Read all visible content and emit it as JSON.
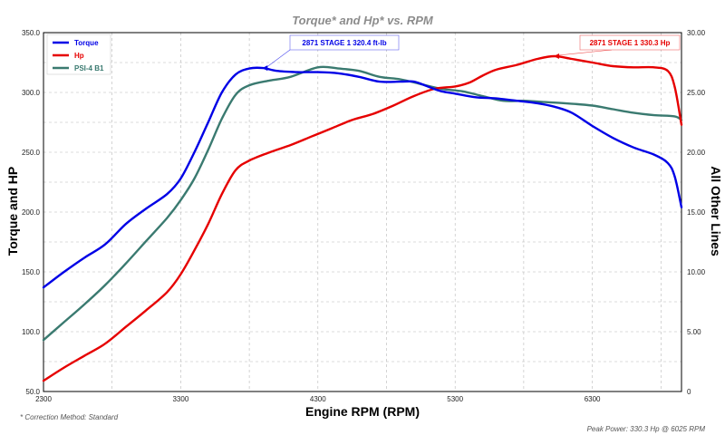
{
  "chart_data": {
    "type": "line",
    "title": "Torque* and Hp* vs. RPM",
    "xlabel": "Engine RPM (RPM)",
    "ylabel": "Torque and HP",
    "y2label": "All Other Lines",
    "xlim": [
      2300,
      6950
    ],
    "ylim": [
      50,
      350
    ],
    "y2lim": [
      0,
      30
    ],
    "xticks": [
      "2300",
      "3300",
      "4300",
      "5300",
      "6300"
    ],
    "yticks": [
      "50.0",
      "100.0",
      "150.0",
      "200.0",
      "250.0",
      "300.0",
      "350.0"
    ],
    "y2ticks": [
      "0",
      "5.00",
      "10.00",
      "15.00",
      "20.00",
      "25.00",
      "30.00"
    ],
    "grid": true,
    "legend_position": "top-left",
    "series": [
      {
        "name": "Torque",
        "color": "#0000e6",
        "axis": "left",
        "points": [
          [
            2300,
            137
          ],
          [
            2450,
            150
          ],
          [
            2600,
            162
          ],
          [
            2750,
            173
          ],
          [
            2900,
            190
          ],
          [
            3050,
            203
          ],
          [
            3200,
            215
          ],
          [
            3300,
            228
          ],
          [
            3400,
            250
          ],
          [
            3500,
            275
          ],
          [
            3600,
            300
          ],
          [
            3700,
            315
          ],
          [
            3800,
            320
          ],
          [
            3900,
            320.4
          ],
          [
            4000,
            318
          ],
          [
            4150,
            317
          ],
          [
            4300,
            317
          ],
          [
            4450,
            316
          ],
          [
            4600,
            313
          ],
          [
            4750,
            309
          ],
          [
            4900,
            309
          ],
          [
            5000,
            309
          ],
          [
            5100,
            305
          ],
          [
            5200,
            301
          ],
          [
            5300,
            299
          ],
          [
            5450,
            296
          ],
          [
            5600,
            295
          ],
          [
            5750,
            293
          ],
          [
            5900,
            291
          ],
          [
            6025,
            288
          ],
          [
            6150,
            283
          ],
          [
            6300,
            272
          ],
          [
            6450,
            262
          ],
          [
            6600,
            254
          ],
          [
            6750,
            248
          ],
          [
            6850,
            241
          ],
          [
            6900,
            230
          ],
          [
            6950,
            204
          ]
        ]
      },
      {
        "name": "Hp",
        "color": "#e60000",
        "axis": "left",
        "points": [
          [
            2300,
            59
          ],
          [
            2450,
            70
          ],
          [
            2600,
            80
          ],
          [
            2750,
            90
          ],
          [
            2900,
            104
          ],
          [
            3050,
            118
          ],
          [
            3200,
            133
          ],
          [
            3300,
            148
          ],
          [
            3400,
            168
          ],
          [
            3500,
            190
          ],
          [
            3600,
            215
          ],
          [
            3700,
            235
          ],
          [
            3800,
            243
          ],
          [
            3950,
            250
          ],
          [
            4100,
            256
          ],
          [
            4250,
            263
          ],
          [
            4400,
            270
          ],
          [
            4550,
            277
          ],
          [
            4700,
            282
          ],
          [
            4850,
            289
          ],
          [
            5000,
            297
          ],
          [
            5150,
            303
          ],
          [
            5300,
            305
          ],
          [
            5400,
            308
          ],
          [
            5500,
            314
          ],
          [
            5600,
            319
          ],
          [
            5750,
            323
          ],
          [
            5900,
            328
          ],
          [
            6025,
            330.3
          ],
          [
            6150,
            328
          ],
          [
            6300,
            325
          ],
          [
            6450,
            322
          ],
          [
            6600,
            321
          ],
          [
            6750,
            321
          ],
          [
            6850,
            318
          ],
          [
            6900,
            305
          ],
          [
            6950,
            273
          ]
        ]
      },
      {
        "name": "PSI-4 B1",
        "color": "#3a7a70",
        "axis": "right",
        "points": [
          [
            2300,
            4.3
          ],
          [
            2450,
            5.8
          ],
          [
            2600,
            7.3
          ],
          [
            2750,
            8.9
          ],
          [
            2900,
            10.7
          ],
          [
            3050,
            12.6
          ],
          [
            3200,
            14.5
          ],
          [
            3300,
            16.0
          ],
          [
            3400,
            17.8
          ],
          [
            3500,
            20.2
          ],
          [
            3600,
            22.8
          ],
          [
            3700,
            24.8
          ],
          [
            3800,
            25.6
          ],
          [
            3950,
            26.0
          ],
          [
            4100,
            26.3
          ],
          [
            4300,
            27.1
          ],
          [
            4450,
            27.0
          ],
          [
            4600,
            26.8
          ],
          [
            4750,
            26.3
          ],
          [
            4900,
            26.1
          ],
          [
            5050,
            25.7
          ],
          [
            5200,
            25.3
          ],
          [
            5350,
            25.1
          ],
          [
            5500,
            24.7
          ],
          [
            5650,
            24.3
          ],
          [
            5800,
            24.3
          ],
          [
            5950,
            24.2
          ],
          [
            6100,
            24.1
          ],
          [
            6300,
            23.9
          ],
          [
            6450,
            23.6
          ],
          [
            6600,
            23.3
          ],
          [
            6750,
            23.1
          ],
          [
            6900,
            23.0
          ],
          [
            6950,
            22.7
          ]
        ]
      }
    ],
    "annotations": [
      {
        "text": "2871 STAGE 1 320.4 ft-lb",
        "series": "Torque",
        "x": 3900,
        "y": 320.4,
        "color": "#0000e6"
      },
      {
        "text": "2871 STAGE 1 330.3 Hp",
        "series": "Hp",
        "x": 6025,
        "y": 330.3,
        "color": "#e60000"
      }
    ],
    "footnote": "* Correction Method: Standard",
    "peak_note": "Peak Power: 330.3 Hp @ 6025 RPM"
  }
}
